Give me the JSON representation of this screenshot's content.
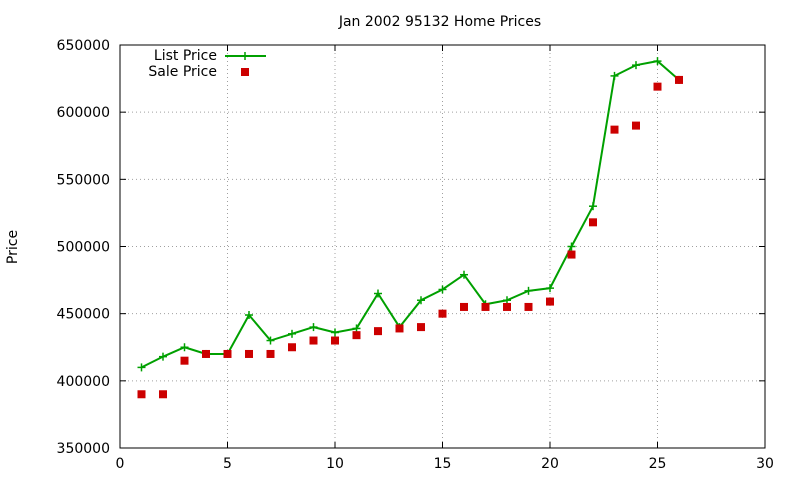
{
  "chart_data": {
    "type": "line",
    "title": "Jan 2002 95132 Home Prices",
    "xlabel": "",
    "ylabel": "Price",
    "xlim": [
      0,
      30
    ],
    "ylim": [
      350000,
      650000
    ],
    "x_ticks": [
      0,
      5,
      10,
      15,
      20,
      25,
      30
    ],
    "y_ticks": [
      350000,
      400000,
      450000,
      500000,
      550000,
      600000,
      650000
    ],
    "grid": true,
    "legend_position": "top-left",
    "series": [
      {
        "name": "List Price",
        "style": "linespoints",
        "marker": "plus",
        "color": "#00a000",
        "x": [
          1,
          2,
          3,
          4,
          5,
          6,
          7,
          8,
          9,
          10,
          11,
          12,
          13,
          14,
          15,
          16,
          17,
          18,
          19,
          20,
          21,
          22,
          23,
          24,
          25,
          26
        ],
        "y": [
          410000,
          418000,
          425000,
          420000,
          420000,
          449000,
          430000,
          435000,
          440000,
          436000,
          439000,
          465000,
          440000,
          460000,
          468000,
          479000,
          457000,
          460000,
          467000,
          469000,
          500000,
          530000,
          627000,
          635000,
          638000,
          624000
        ]
      },
      {
        "name": "Sale Price",
        "style": "points",
        "marker": "square",
        "color": "#cc0000",
        "x": [
          1,
          2,
          3,
          4,
          5,
          6,
          7,
          8,
          9,
          10,
          11,
          12,
          13,
          14,
          15,
          16,
          17,
          18,
          19,
          20,
          21,
          22,
          23,
          24,
          25,
          26
        ],
        "y": [
          390000,
          390000,
          415000,
          420000,
          420000,
          420000,
          420000,
          425000,
          430000,
          430000,
          434000,
          437000,
          439000,
          440000,
          450000,
          455000,
          455000,
          455000,
          455000,
          459000,
          494000,
          518000,
          587000,
          590000,
          619000,
          624000
        ]
      }
    ]
  }
}
